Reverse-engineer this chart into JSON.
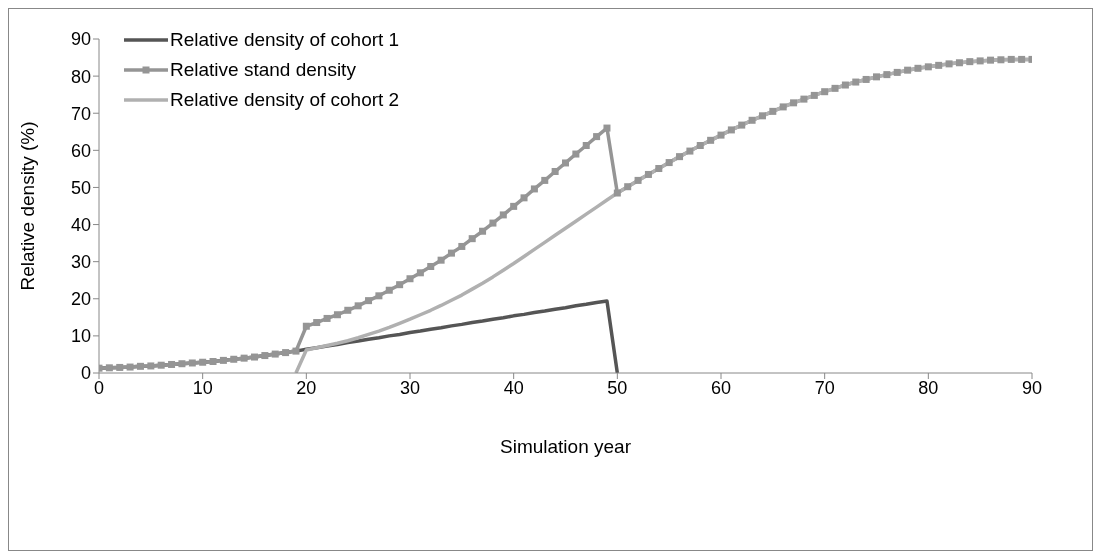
{
  "chart_data": {
    "type": "line",
    "xlabel": "Simulation year",
    "ylabel": "Relative density (%)",
    "xlim": [
      0,
      90
    ],
    "xticks": [
      0,
      10,
      20,
      30,
      40,
      50,
      60,
      70,
      80,
      90
    ],
    "ylim": [
      0,
      90
    ],
    "yticks": [
      0,
      10,
      20,
      30,
      40,
      50,
      60,
      70,
      80,
      90
    ],
    "grid": false,
    "legend": "top left",
    "line_style": "solid",
    "series": [
      {
        "name": "Relative density of cohort 1",
        "color": "#555555",
        "marker": "none",
        "x": [
          0,
          1,
          2,
          3,
          4,
          5,
          6,
          7,
          8,
          9,
          10,
          11,
          12,
          13,
          14,
          15,
          16,
          17,
          18,
          19,
          20,
          21,
          22,
          23,
          24,
          25,
          26,
          27,
          28,
          29,
          30,
          31,
          32,
          33,
          34,
          35,
          36,
          37,
          38,
          39,
          40,
          41,
          42,
          43,
          44,
          45,
          46,
          47,
          48,
          49,
          50
        ],
        "values": [
          1.3,
          1.4,
          1.5,
          1.6,
          1.8,
          1.9,
          2.1,
          2.3,
          2.5,
          2.7,
          2.9,
          3.1,
          3.4,
          3.7,
          4.0,
          4.3,
          4.7,
          5.1,
          5.5,
          5.9,
          6.4,
          6.8,
          7.3,
          7.7,
          8.2,
          8.6,
          9.1,
          9.5,
          10.0,
          10.4,
          10.9,
          11.3,
          11.8,
          12.2,
          12.7,
          13.1,
          13.6,
          14.0,
          14.5,
          14.9,
          15.4,
          15.8,
          16.3,
          16.7,
          17.2,
          17.6,
          18.1,
          18.5,
          19.0,
          19.4,
          0
        ]
      },
      {
        "name": "Relative stand density",
        "color": "#959595",
        "marker": "square",
        "x": [
          0,
          1,
          2,
          3,
          4,
          5,
          6,
          7,
          8,
          9,
          10,
          11,
          12,
          13,
          14,
          15,
          16,
          17,
          18,
          19,
          20,
          21,
          22,
          23,
          24,
          25,
          26,
          27,
          28,
          29,
          30,
          31,
          32,
          33,
          34,
          35,
          36,
          37,
          38,
          39,
          40,
          41,
          42,
          43,
          44,
          45,
          46,
          47,
          48,
          49,
          50,
          51,
          52,
          53,
          54,
          55,
          56,
          57,
          58,
          59,
          60,
          61,
          62,
          63,
          64,
          65,
          66,
          67,
          68,
          69,
          70,
          71,
          72,
          73,
          74,
          75,
          76,
          77,
          78,
          79,
          80,
          81,
          82,
          83,
          84,
          85,
          86,
          87,
          88,
          89,
          90
        ],
        "values": [
          1.3,
          1.4,
          1.5,
          1.6,
          1.8,
          1.9,
          2.1,
          2.3,
          2.5,
          2.7,
          2.9,
          3.1,
          3.4,
          3.7,
          4.0,
          4.3,
          4.7,
          5.1,
          5.5,
          5.9,
          12.6,
          13.6,
          14.7,
          15.7,
          16.9,
          18.1,
          19.5,
          20.8,
          22.3,
          23.8,
          25.4,
          27.0,
          28.7,
          30.4,
          32.3,
          34.1,
          36.2,
          38.2,
          40.4,
          42.6,
          44.9,
          47.2,
          49.6,
          51.9,
          54.3,
          56.6,
          59.0,
          61.3,
          63.7,
          66.0,
          48.5,
          50.2,
          51.9,
          53.5,
          55.1,
          56.7,
          58.3,
          59.8,
          61.3,
          62.7,
          64.1,
          65.5,
          66.8,
          68.1,
          69.3,
          70.5,
          71.7,
          72.8,
          73.8,
          74.8,
          75.8,
          76.7,
          77.6,
          78.4,
          79.1,
          79.8,
          80.4,
          81.0,
          81.6,
          82.1,
          82.5,
          82.9,
          83.3,
          83.6,
          83.9,
          84.1,
          84.3,
          84.4,
          84.5,
          84.5,
          84.5
        ]
      },
      {
        "name": "Relative density of cohort 2",
        "color": "#b0b0b0",
        "marker": "none",
        "x": [
          19,
          20,
          21,
          22,
          23,
          24,
          25,
          26,
          27,
          28,
          29,
          30,
          31,
          32,
          33,
          34,
          35,
          36,
          37,
          38,
          39,
          40,
          41,
          42,
          43,
          44,
          45,
          46,
          47,
          48,
          49,
          50,
          51,
          52,
          53,
          54,
          55,
          56,
          57,
          58,
          59,
          60,
          61,
          62,
          63,
          64,
          65,
          66,
          67,
          68,
          69,
          70,
          71,
          72,
          73,
          74,
          75,
          76,
          77,
          78,
          79,
          80,
          81,
          82,
          83,
          84,
          85,
          86,
          87,
          88,
          89,
          90
        ],
        "values": [
          0,
          6.2,
          6.8,
          7.4,
          8.0,
          8.7,
          9.5,
          10.4,
          11.3,
          12.3,
          13.4,
          14.5,
          15.7,
          16.9,
          18.2,
          19.6,
          21.0,
          22.6,
          24.2,
          25.9,
          27.7,
          29.5,
          31.4,
          33.3,
          35.2,
          37.1,
          39.0,
          40.9,
          42.8,
          44.7,
          46.6,
          48.5,
          50.2,
          51.9,
          53.5,
          55.1,
          56.7,
          58.3,
          59.8,
          61.3,
          62.7,
          64.1,
          65.5,
          66.8,
          68.1,
          69.3,
          70.5,
          71.7,
          72.8,
          73.8,
          74.8,
          75.8,
          76.7,
          77.6,
          78.4,
          79.1,
          79.8,
          80.4,
          81.0,
          81.6,
          82.1,
          82.5,
          82.9,
          83.3,
          83.6,
          83.9,
          84.1,
          84.3,
          84.4,
          84.5,
          84.5,
          84.5
        ]
      }
    ]
  }
}
